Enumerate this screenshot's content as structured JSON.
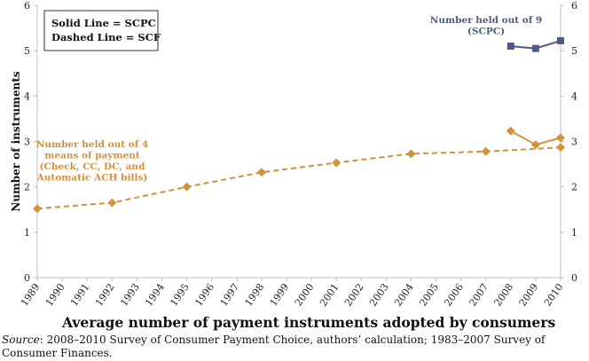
{
  "chart_data": {
    "type": "line",
    "title": "Average number of payment instruments adopted by consumers",
    "ylabel": "Number of instruments",
    "xlabel": "",
    "ylim": [
      0,
      6
    ],
    "yticks": [
      "0",
      "1",
      "2",
      "3",
      "4",
      "5",
      "6"
    ],
    "categories": [
      "1989",
      "1990",
      "1991",
      "1992",
      "1993",
      "1994",
      "1995",
      "1996",
      "1997",
      "1998",
      "1999",
      "2000",
      "2001",
      "2002",
      "2003",
      "2004",
      "2005",
      "2006",
      "2007",
      "2008",
      "2009",
      "2010"
    ],
    "grid": false,
    "legend_text": [
      "Solid Line  = SCPC",
      "Dashed Line = SCF"
    ],
    "legend_position": "top-left",
    "series": [
      {
        "style": "dashed",
        "color": "#d4913c",
        "marker": "diamond",
        "x": [
          1989,
          1992,
          1995,
          1998,
          2001,
          2004,
          2007,
          2010
        ],
        "values": [
          1.52,
          1.65,
          2.0,
          2.32,
          2.53,
          2.73,
          2.78,
          2.87
        ]
      },
      {
        "style": "solid",
        "color": "#d4913c",
        "marker": "diamond",
        "x": [
          2008,
          2009,
          2010
        ],
        "values": [
          3.23,
          2.93,
          3.08
        ]
      },
      {
        "style": "solid",
        "color": "#4e5a82",
        "marker": "square",
        "x": [
          2008,
          2009,
          2010
        ],
        "values": [
          5.1,
          5.05,
          5.22
        ]
      }
    ],
    "annotations": {
      "orange": [
        "Number held out of 4",
        "means of payment",
        "(Check, CC, DC, and",
        "Automatic ACH bills)"
      ],
      "blue": [
        "Number held out of  9",
        "(SCPC)"
      ]
    }
  },
  "source_label": "Source",
  "source_text": ": 2008–2010 Survey of Consumer Payment Choice, authors’ calculation; 1983–2007 Survey of Consumer Finances."
}
